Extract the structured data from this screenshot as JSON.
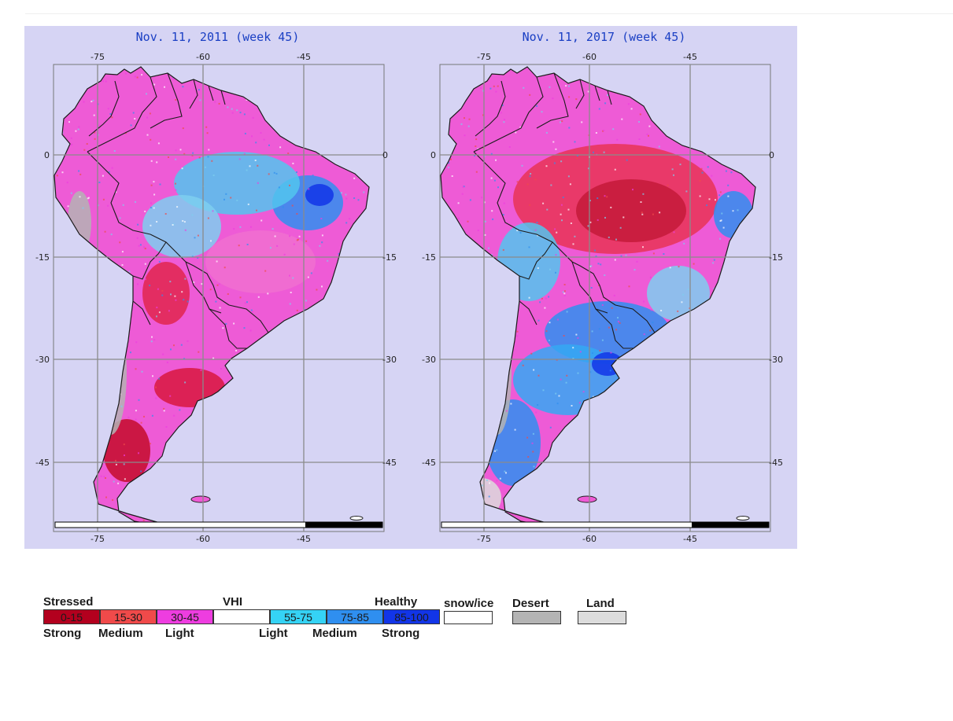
{
  "maps": [
    {
      "title": "Nov. 11, 2011 (week 45)",
      "lon_ticks_top": [
        "-75",
        "-60",
        "-45"
      ],
      "lon_ticks_bottom": [
        "-75",
        "-60",
        "-45"
      ],
      "lat_ticks_left": [
        "0",
        "-15",
        "-30",
        "-45"
      ],
      "lat_ticks_right": [
        "0",
        "-15",
        "-30",
        "-45"
      ],
      "dominant_condition": "mixed light stress with strong stress in south and central west, healthy in northeast"
    },
    {
      "title": "Nov. 11, 2017 (week 45)",
      "lon_ticks_top": [
        "-75",
        "-60",
        "-45"
      ],
      "lon_ticks_bottom": [
        "-75",
        "-60",
        "-45"
      ],
      "lat_ticks_left": [
        "0",
        "-15",
        "-30",
        "-45"
      ],
      "lat_ticks_right": [
        "0",
        "-15",
        "-30",
        "-45"
      ],
      "dominant_condition": "stress across north and Brazil interior, healthy across south"
    }
  ],
  "legend": {
    "stressed_label": "Stressed",
    "vhi_label": "VHI",
    "healthy_label": "Healthy",
    "classes": [
      {
        "range": "0-15",
        "color": "#b3001e"
      },
      {
        "range": "15-30",
        "color": "#f04a4a"
      },
      {
        "range": "30-45",
        "color": "#ee3de0"
      },
      {
        "range": "",
        "color": "#ffffff"
      },
      {
        "range": "55-75",
        "color": "#35d3f5"
      },
      {
        "range": "75-85",
        "color": "#2f8ff0"
      },
      {
        "range": "85-100",
        "color": "#1235e8"
      }
    ],
    "sub_labels": {
      "strong_left": "Strong",
      "medium_left": "Medium",
      "light_left": "Light",
      "light_right": "Light",
      "medium_right": "Medium",
      "strong_right": "Strong"
    },
    "categories": [
      {
        "label": "snow/ice",
        "color": "#ffffff"
      },
      {
        "label": "Desert",
        "color": "#b4b4b4"
      },
      {
        "label": "Land",
        "color": "#dcdcdc"
      }
    ]
  },
  "colors": {
    "ocean": "#d6d4f4",
    "title_text": "#1a3fc4",
    "border": "#1b1b1b"
  }
}
